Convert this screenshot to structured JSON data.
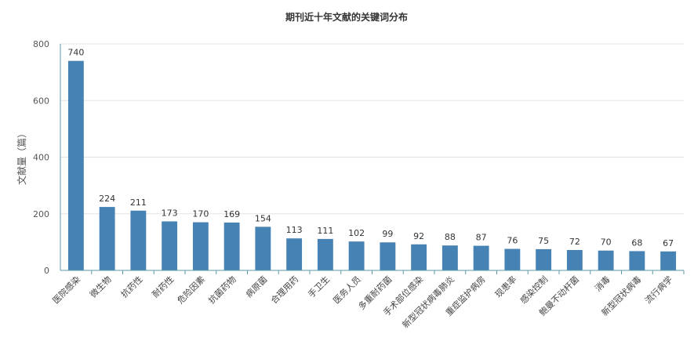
{
  "chart_data": {
    "type": "bar",
    "title": "期刊近十年文献的关键词分布",
    "xlabel": "",
    "ylabel": "文献量（篇）",
    "ylim": [
      0,
      800
    ],
    "yticks": [
      0,
      200,
      400,
      600,
      800
    ],
    "grid": true,
    "legend": "none",
    "bar_color": "#4682b4",
    "categories": [
      "医院感染",
      "微生物",
      "抗药性",
      "耐药性",
      "危险因素",
      "抗菌药物",
      "病原菌",
      "合理用药",
      "手卫生",
      "医务人员",
      "多重耐药菌",
      "手术部位感染",
      "新型冠状病毒肺炎",
      "重症监护病房",
      "现患率",
      "感染控制",
      "鲍曼不动杆菌",
      "消毒",
      "新型冠状病毒",
      "流行病学"
    ],
    "values": [
      740,
      224,
      211,
      173,
      170,
      169,
      154,
      113,
      111,
      102,
      99,
      92,
      88,
      87,
      76,
      75,
      72,
      70,
      68,
      67
    ]
  }
}
